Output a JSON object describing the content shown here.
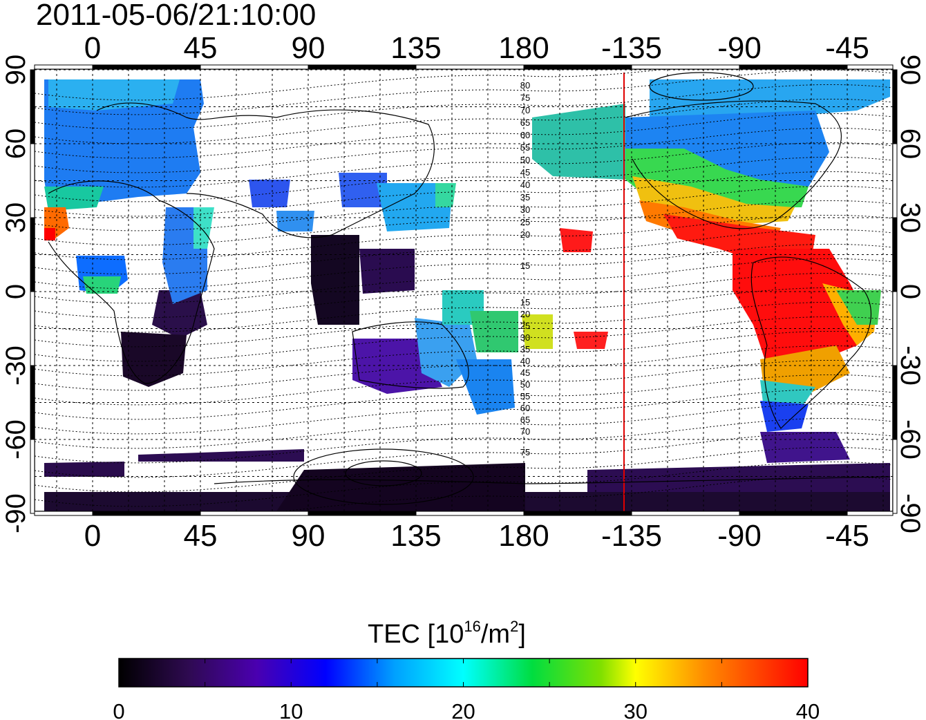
{
  "header": {
    "timestamp": "2011-05-06/21:10:00"
  },
  "map": {
    "lon_ticks": [
      "0",
      "45",
      "90",
      "135",
      "180",
      "-135",
      "-90",
      "-45"
    ],
    "lat_ticks": [
      "90",
      "60",
      "30",
      "0",
      "-30",
      "-60",
      "-90"
    ],
    "extent": {
      "lon_west": -20,
      "lon_east": 330,
      "lat_south": -90,
      "lat_north": 90
    },
    "grid": "dotted, every 15 degrees",
    "terminator_marker": {
      "lon": -135,
      "color": "#e00000"
    },
    "contour_labels_north": [
      "80",
      "75",
      "70",
      "65",
      "60",
      "55",
      "50",
      "45",
      "40",
      "35",
      "30",
      "25",
      "20",
      "15"
    ],
    "contour_labels_south": [
      "15",
      "20",
      "25",
      "30",
      "35",
      "40",
      "45",
      "50",
      "55",
      "60",
      "65",
      "70",
      "75"
    ],
    "coastlines": "continental outlines in thin black lines"
  },
  "colorbar": {
    "title": "TEC  [10",
    "title_exp": "16",
    "title_tail": "/m",
    "title_sq": "2",
    "title_close": "]",
    "ticks": [
      "0",
      "10",
      "20",
      "30",
      "40"
    ],
    "min": 0,
    "max": 40,
    "colormap": [
      "#000000",
      "#3a0a5a",
      "#5a00c8",
      "#0000ff",
      "#0090ff",
      "#00ffff",
      "#00e04a",
      "#7ae000",
      "#ffff00",
      "#ff9000",
      "#ff0000"
    ]
  }
}
